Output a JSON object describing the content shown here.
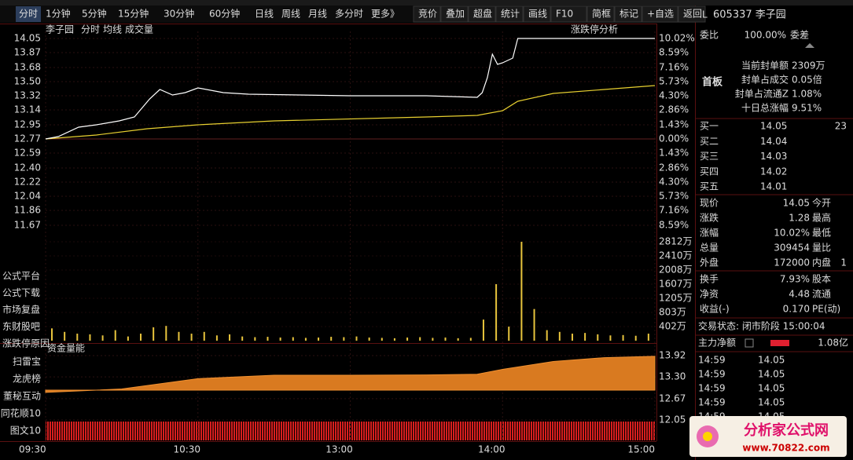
{
  "toolbar": {
    "periods": [
      "分时",
      "1分钟",
      "5分钟",
      "15分钟",
      "30分钟",
      "60分钟",
      "日线",
      "周线",
      "月线",
      "多分时",
      "更多》"
    ],
    "tools": [
      "竞价",
      "叠加",
      "超盘",
      "统计",
      "画线",
      "F10",
      "简框",
      "标记",
      "+自选",
      "返回"
    ]
  },
  "chart_header": {
    "name": "李子园",
    "mode": "分时",
    "avg": "均线",
    "vol": "成交量",
    "analysis": "涨跌停分析"
  },
  "price_axis": {
    "ylim": [
      11.67,
      14.05
    ],
    "ticks": [
      14.05,
      13.87,
      13.68,
      {
        "value": 13.5,
        "label": "13.50"
      },
      13.32,
      13.14,
      12.95,
      12.77,
      12.59,
      {
        "value": 12.4,
        "label": "12.40"
      },
      12.22,
      12.04,
      11.86,
      11.67
    ],
    "pct_labels": [
      "10.02%",
      "8.59%",
      "7.16%",
      "5.73%",
      "4.30%",
      "2.86%",
      "1.43%",
      "0.00%",
      "1.43%",
      "2.86%",
      "4.30%",
      "5.73%",
      "7.16%",
      "8.59%"
    ]
  },
  "time_axis": {
    "xlim": [
      0,
      240
    ],
    "ticks": [
      {
        "value": 0,
        "label": "09:30"
      },
      {
        "value": 60,
        "label": "10:30"
      },
      {
        "value": 120,
        "label": "13:00"
      },
      {
        "value": 180,
        "label": "14:00"
      },
      {
        "value": 240,
        "label": "15:00"
      }
    ]
  },
  "price_line": {
    "x": [
      0,
      5,
      13,
      20,
      29,
      35,
      41,
      45,
      50,
      55,
      60,
      70,
      80,
      100,
      120,
      150,
      170,
      172,
      174,
      176,
      178,
      180,
      184,
      186,
      240
    ],
    "values": [
      12.77,
      12.8,
      12.92,
      12.95,
      13.0,
      13.05,
      13.28,
      13.4,
      13.33,
      13.36,
      13.42,
      13.36,
      13.34,
      13.33,
      13.32,
      13.32,
      13.3,
      13.36,
      13.55,
      13.85,
      13.72,
      13.74,
      13.8,
      14.05,
      14.05
    ]
  },
  "avg_line": {
    "x": [
      0,
      20,
      40,
      60,
      90,
      150,
      170,
      180,
      186,
      200,
      240
    ],
    "values": [
      12.77,
      12.82,
      12.9,
      12.95,
      13.0,
      13.05,
      13.07,
      13.13,
      13.25,
      13.35,
      13.45
    ]
  },
  "volume": {
    "ylim": [
      0,
      2812
    ],
    "ticks": [
      {
        "value": 2812,
        "label": "2812万"
      },
      {
        "value": 2410,
        "label": "2410万"
      },
      {
        "value": 2008,
        "label": "2008万"
      },
      {
        "value": 1607,
        "label": "1607万"
      },
      {
        "value": 1205,
        "label": "1205万"
      },
      {
        "value": 803,
        "label": "803万"
      },
      {
        "value": 402,
        "label": "402万"
      }
    ],
    "x": [
      0,
      5,
      10,
      15,
      20,
      25,
      30,
      35,
      40,
      45,
      50,
      55,
      60,
      65,
      70,
      75,
      80,
      85,
      90,
      95,
      100,
      105,
      110,
      115,
      120,
      125,
      130,
      135,
      140,
      145,
      150,
      155,
      160,
      165,
      170,
      175,
      180,
      185,
      190,
      195,
      200,
      205,
      210,
      215,
      220,
      225,
      230,
      235
    ],
    "values": [
      350,
      250,
      200,
      180,
      150,
      300,
      120,
      200,
      380,
      420,
      250,
      200,
      250,
      150,
      180,
      120,
      100,
      110,
      90,
      100,
      80,
      90,
      110,
      100,
      120,
      90,
      80,
      70,
      90,
      100,
      80,
      90,
      70,
      80,
      600,
      1607,
      400,
      2812,
      900,
      300,
      250,
      200,
      220,
      180,
      150,
      160,
      140,
      200
    ]
  },
  "side_links": [
    "公式平台",
    "公式下载",
    "市场复盘",
    "东财股吧",
    "涨跌停原因"
  ],
  "flow_panel": {
    "title": "资金量能",
    "links": [
      "扫雷宝",
      "龙虎榜",
      "董秘互动",
      "同花顺10",
      "图文10"
    ],
    "ylim": [
      12.05,
      13.92
    ],
    "ticks": [
      13.92,
      {
        "value": 13.3,
        "label": "13.30"
      },
      12.67,
      12.05
    ],
    "x": [
      0,
      30,
      60,
      90,
      120,
      150,
      170,
      180,
      200,
      220,
      240
    ],
    "values": [
      12.85,
      12.95,
      13.25,
      13.35,
      13.35,
      13.36,
      13.38,
      13.52,
      13.75,
      13.86,
      13.9
    ]
  },
  "quote": {
    "flag": "L",
    "stock": "605337 李子园",
    "ratio": [
      "委比",
      "100.00%",
      "委差"
    ],
    "board": "首板",
    "seal": [
      [
        "当前封单额",
        "2309万"
      ],
      [
        "封单占成交",
        "0.05倍"
      ],
      [
        "封单占流通Z",
        "1.08%"
      ],
      [
        "十日总涨幅",
        "9.51%"
      ]
    ],
    "bids": [
      [
        "买一",
        "14.05",
        "23"
      ],
      [
        "买二",
        "14.04"
      ],
      [
        "买三",
        "14.03"
      ],
      [
        "买四",
        "14.02"
      ],
      [
        "买五",
        "14.01"
      ]
    ],
    "rows": [
      [
        "现价",
        "14.05",
        "今开"
      ],
      [
        "涨跌",
        "1.28",
        "最高"
      ],
      [
        "涨幅",
        "10.02%",
        "最低"
      ],
      [
        "总量",
        "309454",
        "量比"
      ],
      [
        "外盘",
        "172000",
        "内盘",
        "1"
      ]
    ],
    "rows2": [
      [
        "换手",
        "7.93%",
        "股本"
      ],
      [
        "净资",
        "4.48",
        "流通"
      ],
      [
        "收益(-)",
        "0.170",
        "PE(动)"
      ]
    ],
    "status": "交易状态: 闭市阶段 15:00:04",
    "net": [
      "主力净额",
      "1.08亿"
    ],
    "trades": [
      [
        "14:59",
        "14.05"
      ],
      [
        "14:59",
        "14.05"
      ],
      [
        "14:59",
        "14.05"
      ],
      [
        "14:59",
        "14.05"
      ],
      [
        "14:59",
        "14.05"
      ]
    ]
  },
  "watermark": {
    "name": "分析家公式网",
    "url": "www.70822.com"
  }
}
